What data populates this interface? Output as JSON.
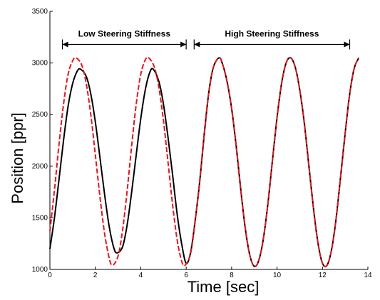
{
  "chart_data": {
    "type": "line",
    "xlabel": "Time [sec]",
    "ylabel": "Position [ppr]",
    "xlim": [
      0,
      14
    ],
    "ylim": [
      1000,
      3500
    ],
    "x_ticks": [
      0,
      2,
      4,
      6,
      8,
      10,
      12,
      14
    ],
    "y_ticks": [
      1000,
      1500,
      2000,
      2500,
      3000,
      3500
    ],
    "grid": false,
    "legend": "none",
    "annotations": [
      {
        "text": "Low Steering Stiffness",
        "x_start": 0.55,
        "x_end": 6.0,
        "y": 3180
      },
      {
        "text": "High Steering Stiffness",
        "x_start": 6.35,
        "x_end": 13.2,
        "y": 3180
      }
    ],
    "series": [
      {
        "style": "solid",
        "color": "#000000",
        "x": [
          0,
          0.2,
          0.4,
          0.6,
          0.8,
          1.0,
          1.2,
          1.35,
          1.6,
          1.8,
          2.0,
          2.2,
          2.4,
          2.6,
          2.8,
          2.95,
          3.2,
          3.4,
          3.6,
          3.8,
          4.0,
          4.2,
          4.4,
          4.55,
          4.8,
          5.0,
          5.2,
          5.4,
          5.6,
          5.8,
          6.0,
          6.2,
          6.4,
          6.6,
          6.8,
          7.0,
          7.2,
          7.45,
          7.6,
          7.8,
          8.0,
          8.2,
          8.4,
          8.6,
          8.8,
          9.0,
          9.2,
          9.4,
          9.6,
          9.8,
          10.0,
          10.2,
          10.4,
          10.6,
          10.8,
          11.0,
          11.2,
          11.4,
          11.6,
          11.8,
          12.0,
          12.2,
          12.4,
          12.6,
          12.8,
          13.0,
          13.2,
          13.4,
          13.6
        ],
        "y": [
          1200,
          1500,
          1870,
          2250,
          2580,
          2800,
          2920,
          2940,
          2870,
          2700,
          2430,
          2090,
          1740,
          1430,
          1220,
          1160,
          1220,
          1430,
          1750,
          2110,
          2460,
          2740,
          2910,
          2940,
          2820,
          2600,
          2280,
          1920,
          1540,
          1250,
          1060,
          1170,
          1480,
          1860,
          2320,
          2720,
          2960,
          3050,
          2990,
          2820,
          2560,
          2200,
          1780,
          1400,
          1140,
          1030,
          1090,
          1300,
          1640,
          2060,
          2470,
          2800,
          3000,
          3050,
          2960,
          2740,
          2420,
          2010,
          1600,
          1260,
          1060,
          1040,
          1190,
          1490,
          1900,
          2320,
          2700,
          2950,
          3050
        ]
      },
      {
        "style": "dashed",
        "color": "#e8141e",
        "x": [
          0,
          0.2,
          0.4,
          0.6,
          0.8,
          1.0,
          1.15,
          1.4,
          1.6,
          1.8,
          2.0,
          2.2,
          2.4,
          2.6,
          2.75,
          3.0,
          3.2,
          3.4,
          3.6,
          3.8,
          4.0,
          4.2,
          4.35,
          4.6,
          4.8,
          5.0,
          5.2,
          5.4,
          5.6,
          5.8,
          5.95,
          6.2,
          6.4,
          6.6,
          6.8,
          7.0,
          7.2,
          7.45,
          7.6,
          7.8,
          8.0,
          8.2,
          8.4,
          8.6,
          8.8,
          9.0,
          9.2,
          9.4,
          9.6,
          9.8,
          10.0,
          10.2,
          10.4,
          10.6,
          10.8,
          11.0,
          11.2,
          11.4,
          11.6,
          11.8,
          12.0,
          12.2,
          12.4,
          12.6,
          12.8,
          13.0,
          13.2,
          13.4,
          13.6
        ],
        "y": [
          1370,
          1770,
          2210,
          2600,
          2890,
          3020,
          3050,
          2980,
          2800,
          2500,
          2110,
          1710,
          1360,
          1120,
          1040,
          1130,
          1380,
          1760,
          2200,
          2600,
          2890,
          3030,
          3050,
          2960,
          2760,
          2440,
          2040,
          1630,
          1290,
          1080,
          1040,
          1160,
          1480,
          1870,
          2320,
          2720,
          2960,
          3050,
          2990,
          2820,
          2560,
          2200,
          1780,
          1400,
          1140,
          1030,
          1090,
          1300,
          1640,
          2060,
          2470,
          2800,
          3000,
          3050,
          2960,
          2740,
          2420,
          2010,
          1600,
          1260,
          1060,
          1040,
          1190,
          1490,
          1900,
          2320,
          2700,
          2950,
          3050
        ]
      }
    ]
  }
}
